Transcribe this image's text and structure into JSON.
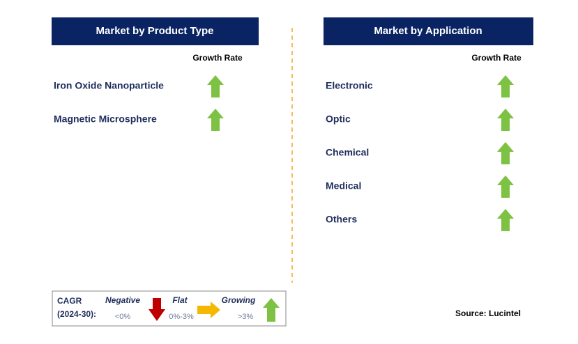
{
  "left": {
    "title": "Market by Product Type",
    "column_header": "Growth Rate",
    "items": [
      "Iron Oxide Nanoparticle",
      "Magnetic Microsphere"
    ]
  },
  "right": {
    "title": "Market by Application",
    "column_header": "Growth Rate",
    "items": [
      "Electronic",
      "Optic",
      "Chemical",
      "Medical",
      "Others"
    ]
  },
  "legend": {
    "label_line1": "CAGR",
    "label_line2": "(2024-30):",
    "negative": {
      "label": "Negative",
      "range": "<0%"
    },
    "flat": {
      "label": "Flat",
      "range": "0%-3%"
    },
    "growing": {
      "label": "Growing",
      "range": ">3%"
    }
  },
  "source": "Source: Lucintel"
}
